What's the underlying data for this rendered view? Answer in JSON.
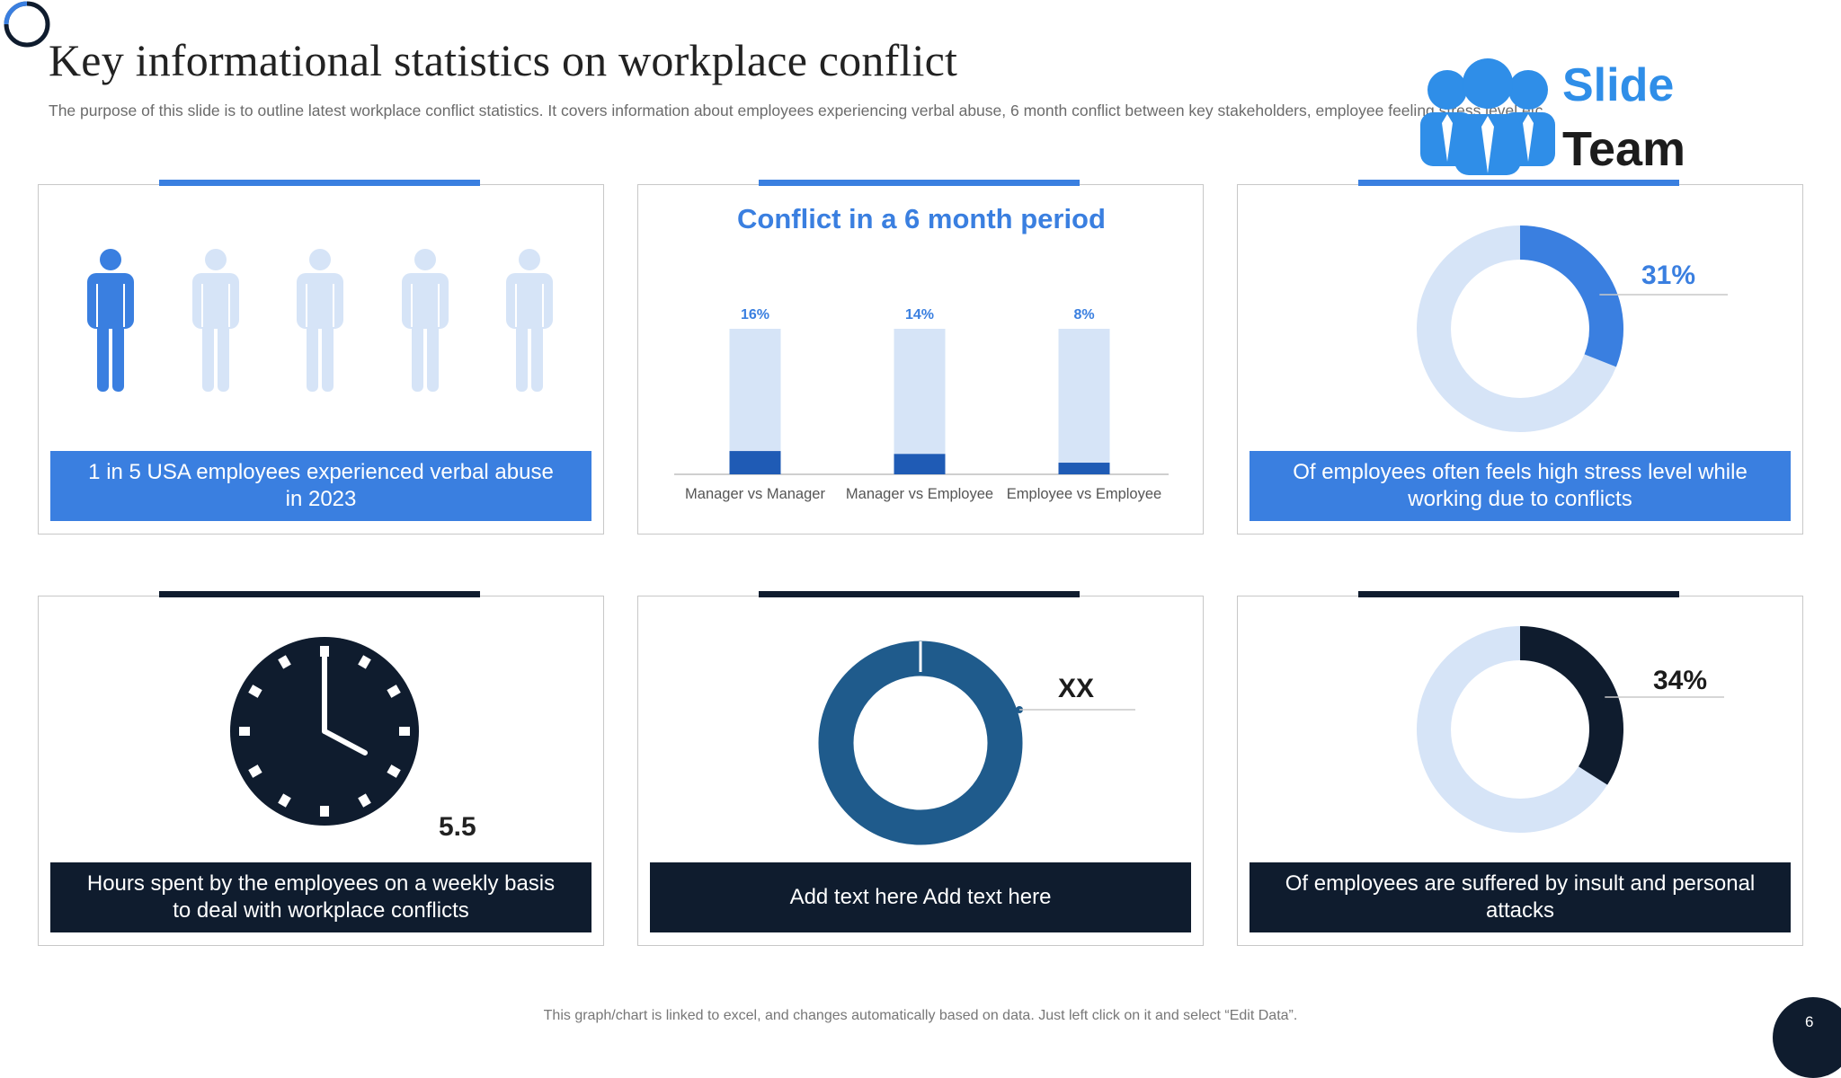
{
  "slide": {
    "title": "Key informational  statistics on workplace conflict",
    "subtitle": "The purpose of this slide is to outline latest workplace conflict statistics. It covers information about employees experiencing verbal abuse, 6 month conflict between key stakeholders, employee feeling stress level etc.",
    "brand": {
      "line1": "Slide",
      "line2": "Team"
    },
    "footer_note": "This graph/chart is linked to excel, and changes automatically based on data. Just left click on it and select “Edit Data”.",
    "page_number": "6"
  },
  "colors": {
    "accent_blue": "#3a7fe0",
    "dark_navy": "#0f1c2e",
    "light_blue": "#d6e4f7",
    "mid_blue": "#1f5b8c",
    "bar_dark": "#1f5bb5"
  },
  "cards": {
    "verbal_abuse": {
      "caption": "1 in 5 USA employees experienced verbal abuse in 2023",
      "highlighted": 1,
      "total": 5,
      "icon": "person-icon"
    },
    "conflict_period": {
      "caption": "Conflict in a 6 month period"
    },
    "stress": {
      "percent_label": "31%",
      "caption": "Of employees often feels high stress level while working due to conflicts"
    },
    "hours": {
      "value": "5.5",
      "caption": "Hours spent by the employees on a weekly basis to deal with workplace conflicts",
      "icon": "clock-icon"
    },
    "placeholder": {
      "label": "XX",
      "caption": "Add text here Add text here"
    },
    "insult": {
      "percent_label": "34%",
      "caption": "Of employees are suffered by insult and personal attacks"
    }
  },
  "chart_data": [
    {
      "type": "bar",
      "title": "Conflict in a 6 month period",
      "categories": [
        "Manager vs Manager",
        "Manager vs Employee",
        "Employee vs Employee"
      ],
      "values": [
        16,
        14,
        8
      ],
      "data_labels": [
        "16%",
        "14%",
        "8%"
      ],
      "ylim": [
        0,
        100
      ],
      "legend": "none"
    },
    {
      "type": "pie",
      "title": "",
      "labels": [
        "",
        ""
      ],
      "values": [
        31,
        69
      ],
      "data_labels": [
        "31%"
      ]
    },
    {
      "type": "pie",
      "title": "",
      "labels": [
        "",
        ""
      ],
      "values": [
        34,
        66
      ],
      "data_labels": [
        "34%"
      ]
    }
  ]
}
